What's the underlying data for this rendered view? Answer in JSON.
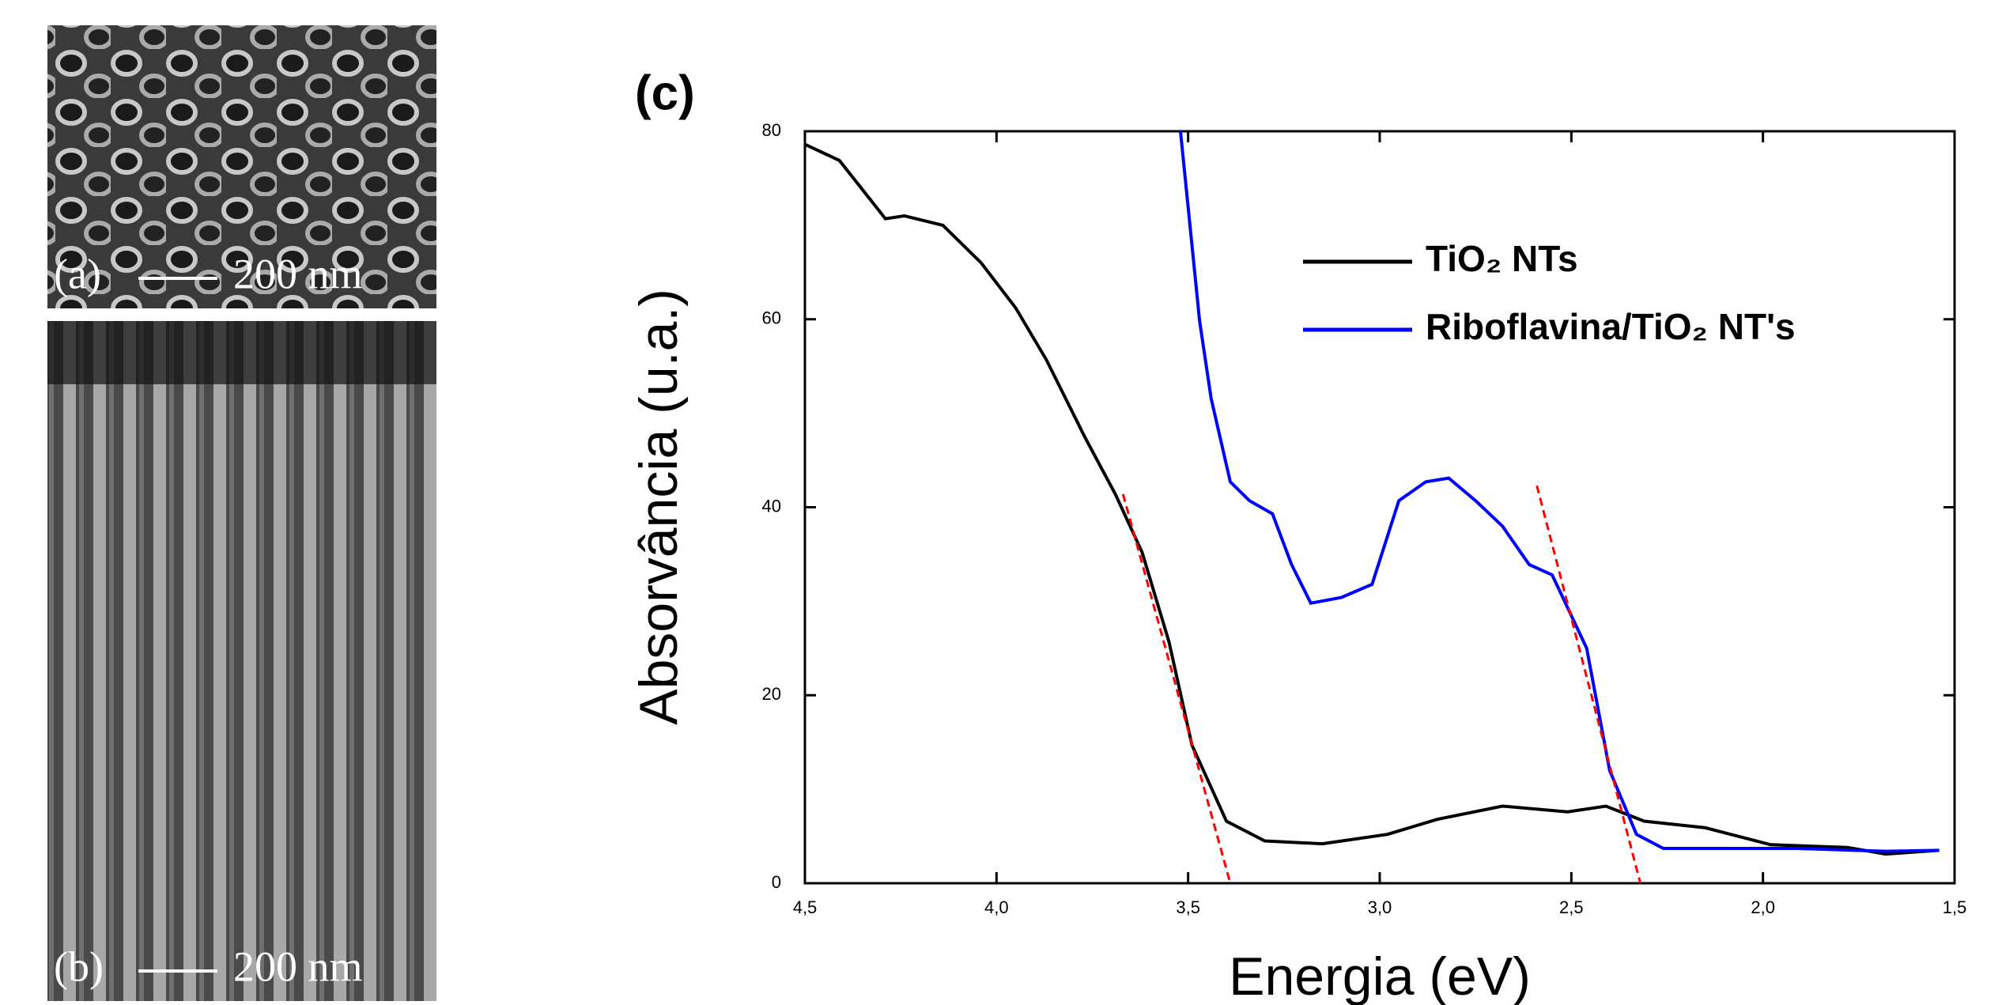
{
  "panels": {
    "a": {
      "letter": "(a)",
      "scale": "200 nm"
    },
    "b": {
      "letter": "(b)",
      "scale": "200 nm"
    }
  },
  "chart_data": {
    "type": "line",
    "label": "(c)",
    "x_label": "Energia (eV)",
    "y_label": "Absorvância (u.a.)",
    "xlim": [
      4.5,
      1.5
    ],
    "ylim": [
      0,
      80
    ],
    "xticks": [
      {
        "value": 4.5,
        "label": "4,5"
      },
      {
        "value": 4.0,
        "label": "4,0"
      },
      {
        "value": 3.5,
        "label": "3,5"
      },
      {
        "value": 3.0,
        "label": "3,0"
      },
      {
        "value": 2.5,
        "label": "2,5"
      },
      {
        "value": 2.0,
        "label": "2,0"
      },
      {
        "value": 1.5,
        "label": "1,5"
      }
    ],
    "yticks": [
      0,
      20,
      40,
      60,
      80
    ],
    "legend": "upper right",
    "series": [
      {
        "name": "TiO₂ NTs",
        "color": "#000000",
        "x": [
          4.5,
          4.41,
          4.29,
          4.24,
          4.14,
          4.04,
          3.95,
          3.87,
          3.77,
          3.69,
          3.62,
          3.55,
          3.49,
          3.4,
          3.3,
          3.15,
          2.98,
          2.85,
          2.68,
          2.51,
          2.41,
          2.31,
          2.15,
          1.98,
          1.78,
          1.68,
          1.54
        ],
        "values": [
          78.6,
          76.9,
          70.7,
          71,
          70,
          66,
          61.2,
          55.7,
          47.5,
          41.4,
          35.2,
          25.7,
          14.7,
          6.6,
          4.5,
          4.2,
          5.2,
          6.8,
          8.2,
          7.6,
          8.2,
          6.6,
          5.9,
          4.1,
          3.8,
          3.1,
          3.5
        ]
      },
      {
        "name": "Riboflavina/TiO₂ NT's",
        "color": "#0000ff",
        "x": [
          3.52,
          3.47,
          3.44,
          3.39,
          3.34,
          3.28,
          3.23,
          3.18,
          3.1,
          3.02,
          2.95,
          2.88,
          2.82,
          2.75,
          2.68,
          2.61,
          2.55,
          2.46,
          2.4,
          2.33,
          2.26,
          1.91,
          1.68,
          1.54
        ],
        "values": [
          80,
          59.8,
          51.6,
          42.7,
          40.7,
          39.3,
          33.9,
          29.8,
          30.4,
          31.8,
          40.7,
          42.7,
          43.1,
          40.7,
          38,
          33.9,
          32.8,
          25,
          12,
          5.2,
          3.7,
          3.7,
          3.4,
          3.5
        ]
      }
    ],
    "tangent_lines": {
      "color": "#ff0000",
      "lines": [
        {
          "x": [
            3.67,
            3.39
          ],
          "values": [
            41.4,
            0
          ]
        },
        {
          "x": [
            2.59,
            2.32
          ],
          "values": [
            42.3,
            0
          ]
        }
      ]
    }
  }
}
